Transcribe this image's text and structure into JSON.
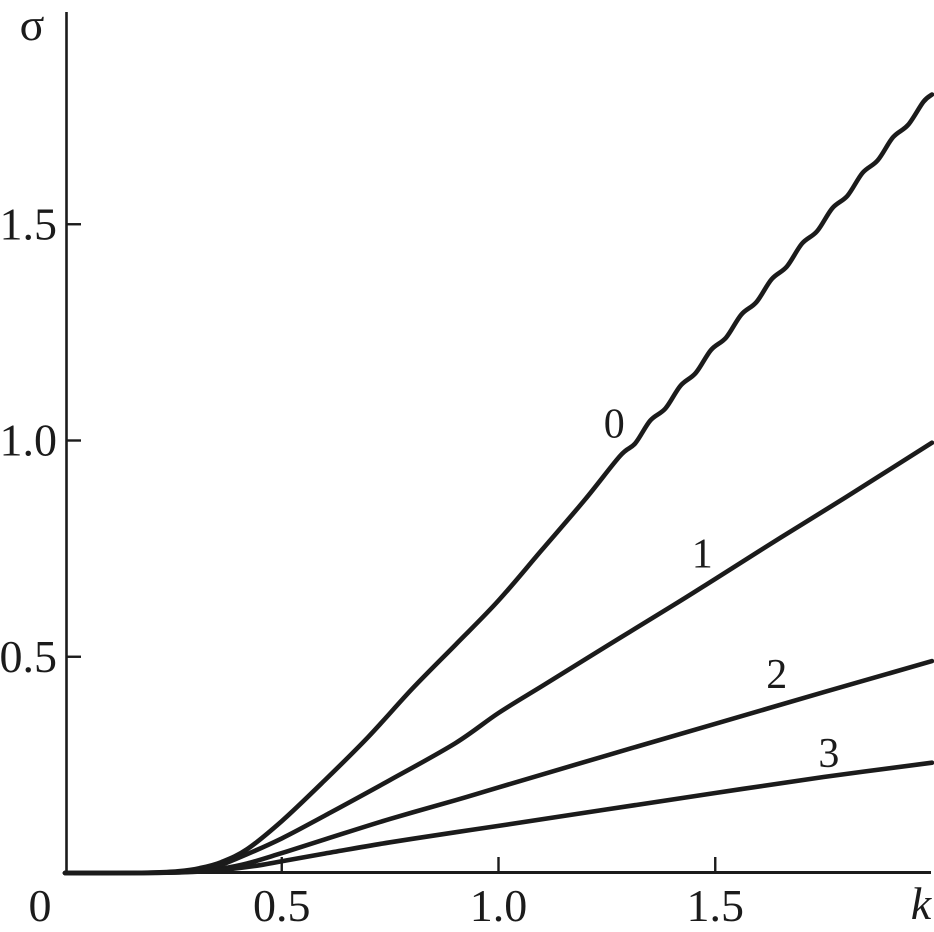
{
  "figure": {
    "background": "#ffffff",
    "line_color": "#1b1b1b"
  },
  "chart_data": {
    "type": "line",
    "title": "",
    "xlabel": "k",
    "ylabel": "σ",
    "origin_label": "0",
    "xlim": [
      0,
      2.0
    ],
    "ylim": [
      0,
      2.0
    ],
    "grid": false,
    "legend_position": "inline-curve-labels",
    "x_ticks": [
      {
        "value": 0.5,
        "label": "0.5"
      },
      {
        "value": 1.0,
        "label": "1.0"
      },
      {
        "value": 1.5,
        "label": "1.5"
      }
    ],
    "y_ticks": [
      {
        "value": 0.5,
        "label": "0.5"
      },
      {
        "value": 1.0,
        "label": "1.0"
      },
      {
        "value": 1.5,
        "label": "1.5"
      }
    ],
    "series": [
      {
        "name": "0",
        "label": {
          "text": "0",
          "k": 1.267,
          "sigma": 1.007
        },
        "note": "curve shows small wavy oscillations for sigma above about 1.0",
        "points": [
          [
            0,
            0
          ],
          [
            0.12,
            0
          ],
          [
            0.2,
            0.001
          ],
          [
            0.26,
            0.004
          ],
          [
            0.31,
            0.011
          ],
          [
            0.36,
            0.025
          ],
          [
            0.42,
            0.055
          ],
          [
            0.5,
            0.12
          ],
          [
            0.6,
            0.215
          ],
          [
            0.7,
            0.315
          ],
          [
            0.8,
            0.425
          ],
          [
            0.9,
            0.527
          ],
          [
            1.0,
            0.63
          ],
          [
            1.1,
            0.747
          ],
          [
            1.2,
            0.864
          ],
          [
            1.28,
            0.964
          ],
          [
            1.315,
            0.993
          ],
          [
            1.35,
            1.046
          ],
          [
            1.385,
            1.074
          ],
          [
            1.42,
            1.127
          ],
          [
            1.455,
            1.156
          ],
          [
            1.49,
            1.209
          ],
          [
            1.525,
            1.238
          ],
          [
            1.56,
            1.291
          ],
          [
            1.595,
            1.32
          ],
          [
            1.63,
            1.373
          ],
          [
            1.665,
            1.402
          ],
          [
            1.7,
            1.455
          ],
          [
            1.735,
            1.484
          ],
          [
            1.77,
            1.537
          ],
          [
            1.805,
            1.566
          ],
          [
            1.84,
            1.619
          ],
          [
            1.875,
            1.648
          ],
          [
            1.91,
            1.701
          ],
          [
            1.945,
            1.73
          ],
          [
            1.98,
            1.783
          ],
          [
            2.0,
            1.8
          ]
        ]
      },
      {
        "name": "1",
        "label": {
          "text": "1",
          "k": 1.47,
          "sigma": 0.706
        },
        "points": [
          [
            0,
            0
          ],
          [
            0.12,
            0
          ],
          [
            0.22,
            0.001
          ],
          [
            0.28,
            0.004
          ],
          [
            0.34,
            0.012
          ],
          [
            0.4,
            0.035
          ],
          [
            0.5,
            0.08
          ],
          [
            0.6,
            0.133
          ],
          [
            0.75,
            0.215
          ],
          [
            0.9,
            0.3
          ],
          [
            1.0,
            0.37
          ],
          [
            1.1,
            0.432
          ],
          [
            1.25,
            0.525
          ],
          [
            1.4,
            0.617
          ],
          [
            1.5,
            0.68
          ],
          [
            1.65,
            0.775
          ],
          [
            1.8,
            0.868
          ],
          [
            2.0,
            0.995
          ]
        ]
      },
      {
        "name": "2",
        "label": {
          "text": "2",
          "k": 1.642,
          "sigma": 0.428
        },
        "points": [
          [
            0,
            0
          ],
          [
            0.14,
            0
          ],
          [
            0.24,
            0.001
          ],
          [
            0.3,
            0.004
          ],
          [
            0.36,
            0.01
          ],
          [
            0.42,
            0.022
          ],
          [
            0.5,
            0.046
          ],
          [
            0.6,
            0.078
          ],
          [
            0.75,
            0.125
          ],
          [
            0.9,
            0.168
          ],
          [
            1.0,
            0.198
          ],
          [
            1.25,
            0.272
          ],
          [
            1.5,
            0.345
          ],
          [
            1.75,
            0.418
          ],
          [
            2.0,
            0.49
          ]
        ]
      },
      {
        "name": "3",
        "label": {
          "text": "3",
          "k": 1.762,
          "sigma": 0.245
        },
        "points": [
          [
            0,
            0
          ],
          [
            0.14,
            0
          ],
          [
            0.25,
            0.001
          ],
          [
            0.32,
            0.004
          ],
          [
            0.38,
            0.009
          ],
          [
            0.45,
            0.018
          ],
          [
            0.5,
            0.027
          ],
          [
            0.6,
            0.045
          ],
          [
            0.75,
            0.071
          ],
          [
            0.9,
            0.094
          ],
          [
            1.0,
            0.109
          ],
          [
            1.25,
            0.147
          ],
          [
            1.5,
            0.185
          ],
          [
            1.75,
            0.222
          ],
          [
            2.0,
            0.255
          ]
        ]
      }
    ]
  }
}
